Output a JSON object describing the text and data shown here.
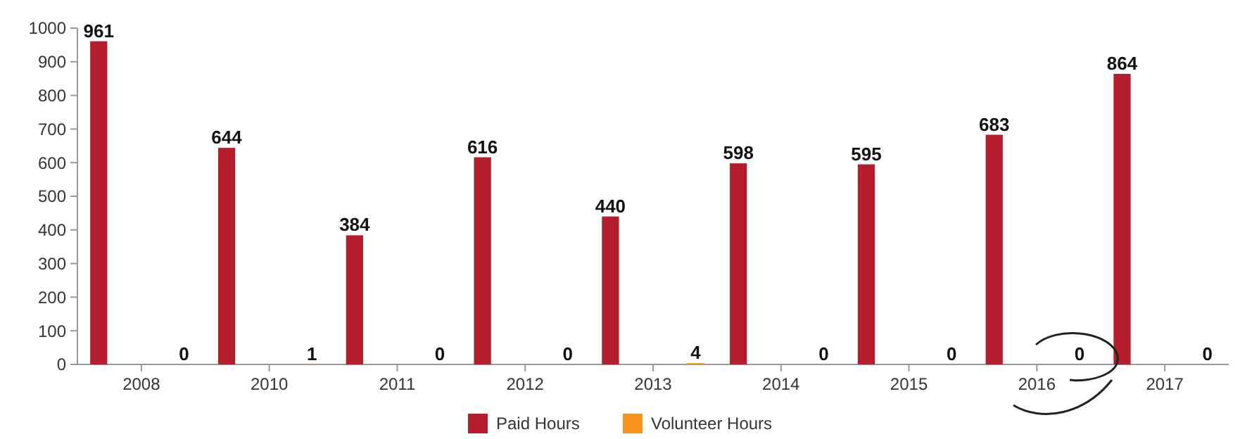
{
  "chart_data": {
    "type": "bar",
    "categories": [
      "2008",
      "2010",
      "2011",
      "2012",
      "2013",
      "2014",
      "2015",
      "2016",
      "2017"
    ],
    "series": [
      {
        "name": "Paid Hours",
        "color": "#b41d2c",
        "values": [
          961,
          644,
          384,
          616,
          440,
          598,
          595,
          683,
          864
        ]
      },
      {
        "name": "Volunteer Hours",
        "color": "#f7941d",
        "values": [
          0,
          1,
          0,
          0,
          4,
          0,
          0,
          0,
          0
        ]
      }
    ],
    "ylim": [
      0,
      1000
    ],
    "yticks": [
      0,
      100,
      200,
      300,
      400,
      500,
      600,
      700,
      800,
      900,
      1000
    ],
    "data_labels": true,
    "legend": "bottom",
    "grid": false
  }
}
